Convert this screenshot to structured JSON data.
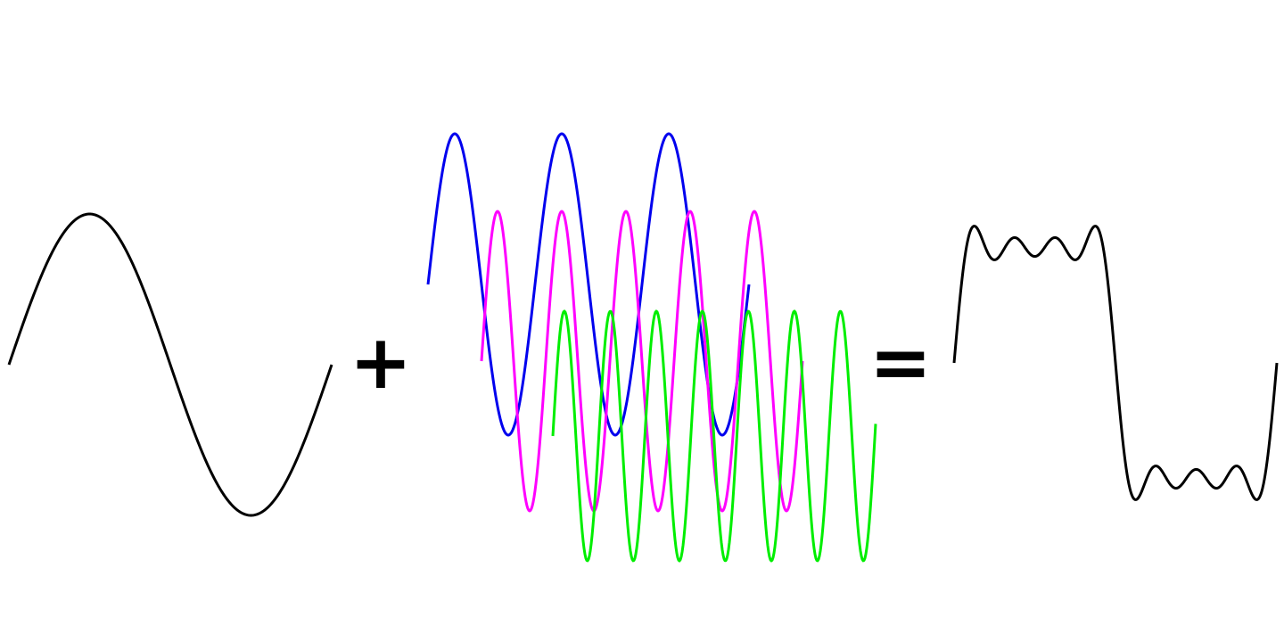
{
  "operators": {
    "plus": "+",
    "equals": "="
  }
}
